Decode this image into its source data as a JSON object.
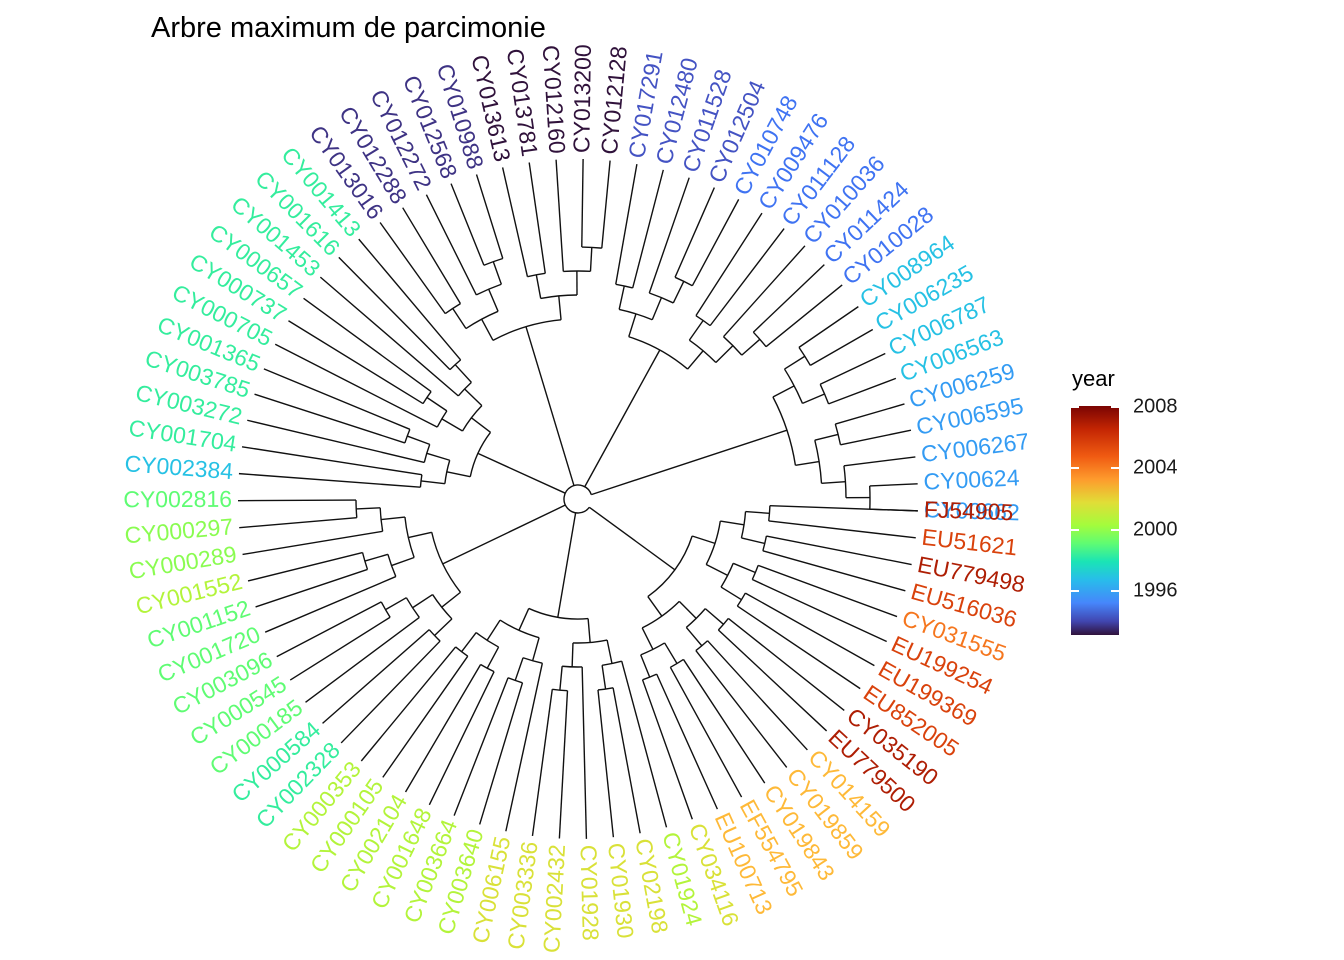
{
  "title": "Arbre maximum de parcimonie",
  "legend": {
    "title": "year",
    "ticks": [
      "2008",
      "2004",
      "2000",
      "1996"
    ],
    "tick_values": [
      2008,
      2004,
      2000,
      1996
    ],
    "range": [
      1993,
      2009
    ],
    "colormap": "turbo"
  },
  "tips": [
    {
      "label": "CY00662",
      "year": 1997
    },
    {
      "label": "CY00624",
      "year": 1997
    },
    {
      "label": "CY006267",
      "year": 1997
    },
    {
      "label": "CY006595",
      "year": 1997
    },
    {
      "label": "CY006259",
      "year": 1997
    },
    {
      "label": "CY006563",
      "year": 1998
    },
    {
      "label": "CY006787",
      "year": 1998
    },
    {
      "label": "CY006235",
      "year": 1998
    },
    {
      "label": "CY008964",
      "year": 1998
    },
    {
      "label": "CY010028",
      "year": 1996
    },
    {
      "label": "CY011424",
      "year": 1996
    },
    {
      "label": "CY010036",
      "year": 1996
    },
    {
      "label": "CY011128",
      "year": 1996
    },
    {
      "label": "CY009476",
      "year": 1996
    },
    {
      "label": "CY010748",
      "year": 1996
    },
    {
      "label": "CY012504",
      "year": 1995
    },
    {
      "label": "CY011528",
      "year": 1995
    },
    {
      "label": "CY012480",
      "year": 1995
    },
    {
      "label": "CY017291",
      "year": 1995
    },
    {
      "label": "CY012128",
      "year": 1993
    },
    {
      "label": "CY013200",
      "year": 1993
    },
    {
      "label": "CY012160",
      "year": 1993
    },
    {
      "label": "CY013781",
      "year": 1993
    },
    {
      "label": "CY013613",
      "year": 1993
    },
    {
      "label": "CY010988",
      "year": 1994
    },
    {
      "label": "CY012568",
      "year": 1994
    },
    {
      "label": "CY012272",
      "year": 1994
    },
    {
      "label": "CY012288",
      "year": 1994
    },
    {
      "label": "CY013016",
      "year": 1994
    },
    {
      "label": "CY001413",
      "year": 2000
    },
    {
      "label": "CY001616",
      "year": 2000
    },
    {
      "label": "CY001453",
      "year": 2000
    },
    {
      "label": "CY000657",
      "year": 2000
    },
    {
      "label": "CY000737",
      "year": 2000
    },
    {
      "label": "CY000705",
      "year": 2000
    },
    {
      "label": "CY001365",
      "year": 2000
    },
    {
      "label": "CY003785",
      "year": 2000
    },
    {
      "label": "CY003272",
      "year": 2000
    },
    {
      "label": "CY001704",
      "year": 2000
    },
    {
      "label": "CY002384",
      "year": 1998
    },
    {
      "label": "CY002816",
      "year": 2001
    },
    {
      "label": "CY000297",
      "year": 2002
    },
    {
      "label": "CY000289",
      "year": 2002
    },
    {
      "label": "CY001552",
      "year": 2003
    },
    {
      "label": "CY001152",
      "year": 2001
    },
    {
      "label": "CY001720",
      "year": 2001
    },
    {
      "label": "CY003096",
      "year": 2001
    },
    {
      "label": "CY000545",
      "year": 2001
    },
    {
      "label": "CY000185",
      "year": 2001
    },
    {
      "label": "CY000584",
      "year": 2000
    },
    {
      "label": "CY002328",
      "year": 2000
    },
    {
      "label": "CY000353",
      "year": 2003
    },
    {
      "label": "CY000105",
      "year": 2003
    },
    {
      "label": "CY002104",
      "year": 2003
    },
    {
      "label": "CY001648",
      "year": 2003
    },
    {
      "label": "CY003664",
      "year": 2003
    },
    {
      "label": "CY003640",
      "year": 2003
    },
    {
      "label": "CY006155",
      "year": 2004
    },
    {
      "label": "CY003336",
      "year": 2004
    },
    {
      "label": "CY002432",
      "year": 2004
    },
    {
      "label": "CY01928",
      "year": 2004
    },
    {
      "label": "CY01930",
      "year": 2004
    },
    {
      "label": "CY02198",
      "year": 2004
    },
    {
      "label": "CY01924",
      "year": 2003
    },
    {
      "label": "CY034116",
      "year": 2004
    },
    {
      "label": "EU100713",
      "year": 2005
    },
    {
      "label": "EF554795",
      "year": 2005
    },
    {
      "label": "CY019843",
      "year": 2005
    },
    {
      "label": "CY019859",
      "year": 2005
    },
    {
      "label": "CY014159",
      "year": 2005
    },
    {
      "label": "EU779500",
      "year": 2008
    },
    {
      "label": "CY035190",
      "year": 2008
    },
    {
      "label": "EU852005",
      "year": 2007
    },
    {
      "label": "EU199369",
      "year": 2007
    },
    {
      "label": "EU199254",
      "year": 2007
    },
    {
      "label": "CY031555",
      "year": 2006
    },
    {
      "label": "EU516036",
      "year": 2007
    },
    {
      "label": "EU779498",
      "year": 2008
    },
    {
      "label": "EU51621",
      "year": 2007
    },
    {
      "label": "FJ54905",
      "year": 2008
    }
  ]
}
